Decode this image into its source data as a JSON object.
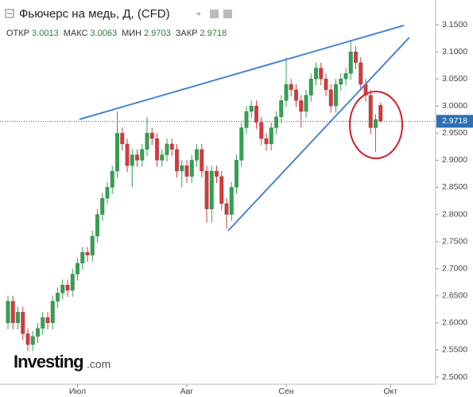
{
  "chart_data": {
    "type": "candlestick",
    "title": "Фьючерс на медь, Д, (CFD)",
    "ohlc_header": [
      {
        "label": "ОТКР",
        "value": "3.0013"
      },
      {
        "label": "МАКС",
        "value": "3.0063"
      },
      {
        "label": "МИН",
        "value": "2.9703"
      },
      {
        "label": "ЗАКР",
        "value": "2.9718"
      }
    ],
    "logo": "Investing",
    "logo_suffix": ".com",
    "categories": [
      null,
      null,
      null,
      null,
      null,
      null,
      null,
      null,
      null,
      null,
      null,
      null,
      null,
      null,
      "Июл",
      null,
      null,
      null,
      null,
      null,
      null,
      null,
      null,
      null,
      null,
      null,
      null,
      null,
      null,
      null,
      null,
      null,
      null,
      null,
      null,
      null,
      "Авг",
      null,
      null,
      null,
      null,
      null,
      null,
      null,
      null,
      null,
      null,
      null,
      null,
      null,
      null,
      null,
      null,
      null,
      null,
      null,
      "Сен",
      null,
      null,
      null,
      null,
      null,
      null,
      null,
      null,
      null,
      null,
      null,
      null,
      null,
      null,
      null,
      null,
      null,
      null,
      null,
      null,
      "Окт"
    ],
    "open": [
      2.6,
      2.64,
      2.6,
      2.62,
      2.58,
      2.56,
      2.575,
      2.59,
      2.61,
      2.6,
      2.64,
      2.655,
      2.67,
      2.66,
      2.69,
      2.71,
      2.73,
      2.725,
      2.76,
      2.8,
      2.83,
      2.85,
      2.88,
      2.95,
      2.93,
      2.89,
      2.91,
      2.9,
      2.92,
      2.95,
      2.94,
      2.9,
      2.91,
      2.93,
      2.92,
      2.88,
      2.89,
      2.87,
      2.9,
      2.92,
      2.88,
      2.81,
      2.88,
      2.87,
      2.82,
      2.8,
      2.85,
      2.9,
      2.96,
      2.99,
      3.0,
      2.97,
      2.94,
      2.93,
      2.96,
      2.98,
      3.01,
      3.04,
      3.03,
      3.01,
      2.99,
      3.02,
      3.05,
      3.07,
      3.05,
      3.03,
      3.0,
      3.04,
      3.05,
      3.06,
      3.1,
      3.08,
      3.04,
      3.02,
      2.96,
      3.0013,
      null,
      null
    ],
    "high": [
      2.65,
      2.65,
      2.63,
      2.63,
      2.59,
      2.585,
      2.6,
      2.62,
      2.62,
      2.65,
      2.665,
      2.68,
      2.68,
      2.7,
      2.72,
      2.74,
      2.74,
      2.77,
      2.81,
      2.84,
      2.86,
      2.89,
      2.99,
      2.96,
      2.94,
      2.92,
      2.92,
      2.93,
      2.98,
      2.96,
      2.95,
      2.92,
      2.94,
      2.94,
      2.93,
      2.9,
      2.9,
      2.91,
      2.93,
      2.93,
      2.89,
      2.89,
      2.89,
      2.88,
      2.83,
      2.86,
      2.91,
      2.97,
      3.0,
      3.01,
      3.01,
      2.98,
      2.95,
      2.97,
      2.99,
      3.02,
      3.09,
      3.05,
      3.04,
      3.02,
      3.03,
      3.06,
      3.08,
      3.08,
      3.06,
      3.04,
      3.05,
      3.06,
      3.07,
      3.12,
      3.11,
      3.09,
      3.05,
      3.03,
      2.985,
      3.0063,
      null,
      null
    ],
    "low": [
      2.588,
      2.588,
      2.588,
      2.568,
      2.548,
      2.548,
      2.563,
      2.578,
      2.588,
      2.588,
      2.628,
      2.643,
      2.648,
      2.648,
      2.678,
      2.698,
      2.713,
      2.713,
      2.748,
      2.788,
      2.818,
      2.838,
      2.868,
      2.918,
      2.878,
      2.85,
      2.888,
      2.888,
      2.908,
      2.928,
      2.888,
      2.888,
      2.898,
      2.908,
      2.868,
      2.85,
      2.858,
      2.858,
      2.888,
      2.868,
      2.785,
      2.785,
      2.858,
      2.808,
      2.775,
      2.788,
      2.838,
      2.888,
      2.948,
      2.978,
      2.958,
      2.928,
      2.918,
      2.918,
      2.948,
      2.968,
      2.998,
      3.018,
      2.998,
      2.96,
      2.978,
      3.008,
      3.038,
      3.038,
      3.018,
      2.988,
      2.988,
      3.028,
      3.038,
      3.048,
      3.068,
      3.028,
      3.008,
      2.948,
      2.915,
      2.9703,
      null,
      null
    ],
    "close": [
      2.64,
      2.6,
      2.62,
      2.58,
      2.56,
      2.575,
      2.59,
      2.61,
      2.6,
      2.64,
      2.655,
      2.67,
      2.66,
      2.69,
      2.71,
      2.73,
      2.725,
      2.76,
      2.8,
      2.83,
      2.85,
      2.88,
      2.95,
      2.93,
      2.89,
      2.91,
      2.9,
      2.92,
      2.95,
      2.94,
      2.9,
      2.91,
      2.93,
      2.92,
      2.88,
      2.89,
      2.87,
      2.9,
      2.92,
      2.88,
      2.81,
      2.88,
      2.87,
      2.82,
      2.8,
      2.85,
      2.9,
      2.96,
      2.99,
      3.0,
      2.97,
      2.94,
      2.93,
      2.96,
      2.98,
      3.01,
      3.04,
      3.03,
      3.01,
      2.99,
      3.02,
      3.05,
      3.07,
      3.05,
      3.03,
      3.0,
      3.04,
      3.05,
      3.06,
      3.1,
      3.08,
      3.04,
      3.02,
      2.96,
      2.975,
      2.9718,
      null,
      null
    ],
    "up_color": "#2ea44f",
    "down_color": "#d9383a",
    "last_price": {
      "value": 2.9718,
      "label": "2.9718"
    },
    "ylim": [
      2.4868,
      3.1955
    ],
    "yticks": [
      {
        "value": 2.5,
        "label": "2.5000"
      },
      {
        "value": 2.55,
        "label": "2.5500"
      },
      {
        "value": 2.6,
        "label": "2.6000"
      },
      {
        "value": 2.65,
        "label": "2.6500"
      },
      {
        "value": 2.7,
        "label": "2.7000"
      },
      {
        "value": 2.75,
        "label": "2.7500"
      },
      {
        "value": 2.8,
        "label": "2.8000"
      },
      {
        "value": 2.85,
        "label": "2.8500"
      },
      {
        "value": 2.9,
        "label": "2.9000"
      },
      {
        "value": 2.95,
        "label": "2.9500"
      },
      {
        "value": 3.0,
        "label": "3.0000"
      },
      {
        "value": 3.05,
        "label": "3.0500"
      },
      {
        "value": 3.1,
        "label": "3.1000"
      },
      {
        "value": 3.15,
        "label": "3.1500"
      }
    ]
  }
}
